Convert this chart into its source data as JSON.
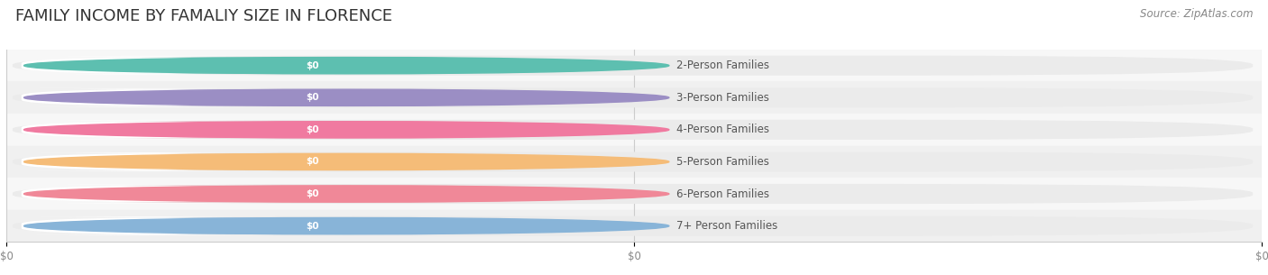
{
  "title": "FAMILY INCOME BY FAMALIY SIZE IN FLORENCE",
  "source": "Source: ZipAtlas.com",
  "categories": [
    "2-Person Families",
    "3-Person Families",
    "4-Person Families",
    "5-Person Families",
    "6-Person Families",
    "7+ Person Families"
  ],
  "values": [
    0,
    0,
    0,
    0,
    0,
    0
  ],
  "bar_colors": [
    "#5dbfb0",
    "#9b8ec4",
    "#f07aa0",
    "#f5bc78",
    "#f08898",
    "#88b4d8"
  ],
  "bar_bg_color": "#ebebeb",
  "row_bg_colors": [
    "#f7f7f7",
    "#f0f0f0"
  ],
  "value_labels": [
    "$0",
    "$0",
    "$0",
    "$0",
    "$0",
    "$0"
  ],
  "x_tick_labels": [
    "$0",
    "$0",
    "$0"
  ],
  "background_color": "#ffffff",
  "title_fontsize": 13,
  "label_fontsize": 8.5,
  "source_fontsize": 8.5,
  "bar_height": 0.62
}
